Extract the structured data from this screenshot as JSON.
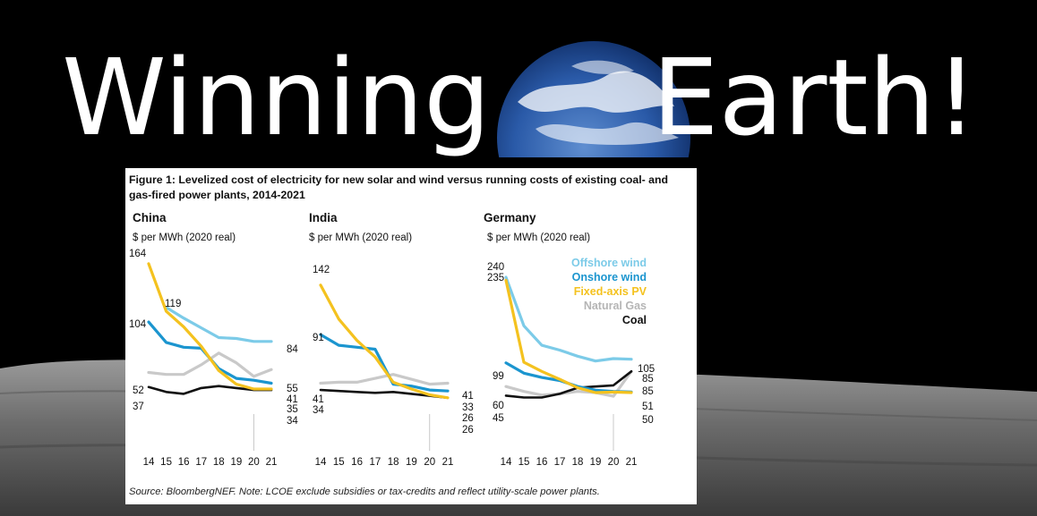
{
  "slide": {
    "title_left": "Winning",
    "title_right": "Earth!"
  },
  "figure": {
    "title": "Figure 1: Levelized cost of electricity for new solar and wind versus running costs of existing coal- and gas-fired power plants, 2014-2021",
    "source": "Source: BloombergNEF. Note: LCOE exclude subsidies or tax-credits and reflect utility-scale power plants."
  },
  "colors": {
    "offshore_wind": "#7ccbe8",
    "onshore_wind": "#1b95cf",
    "fixed_axis_pv": "#f4c21f",
    "natural_gas": "#c9c9c9",
    "coal": "#111111",
    "background": "#000000",
    "card": "#ffffff"
  },
  "legend": [
    {
      "label": "Offshore wind",
      "color": "#7ccbe8"
    },
    {
      "label": "Onshore wind",
      "color": "#1b95cf"
    },
    {
      "label": "Fixed-axis PV",
      "color": "#f4c21f"
    },
    {
      "label": "Natural Gas",
      "color": "#b5b5b5"
    },
    {
      "label": "Coal",
      "color": "#111111"
    }
  ],
  "chart_data": [
    {
      "type": "line",
      "title": "China",
      "ylabel": "$ per MWh (2020 real)",
      "x": [
        "14",
        "15",
        "16",
        "17",
        "18",
        "19",
        "20",
        "21"
      ],
      "ylim": [
        0,
        175
      ],
      "series": [
        {
          "name": "Offshore wind",
          "values": [
            null,
            119,
            108,
            98,
            88,
            87,
            84,
            84
          ]
        },
        {
          "name": "Onshore wind",
          "values": [
            104,
            83,
            78,
            77,
            56,
            46,
            44,
            41
          ]
        },
        {
          "name": "Fixed-axis PV",
          "values": [
            164,
            115,
            99,
            79,
            54,
            40,
            35,
            35
          ]
        },
        {
          "name": "Natural Gas",
          "values": [
            52,
            50,
            50,
            60,
            72,
            62,
            48,
            55
          ]
        },
        {
          "name": "Coal",
          "values": [
            37,
            32,
            30,
            36,
            38,
            36,
            34,
            34
          ]
        }
      ],
      "data_labels": [
        "164",
        "119",
        "104",
        "52",
        "37",
        "84",
        "55",
        "41",
        "35",
        "34"
      ]
    },
    {
      "type": "line",
      "title": "India",
      "ylabel": "$ per MWh (2020 real)",
      "x": [
        "14",
        "15",
        "16",
        "17",
        "18",
        "19",
        "20",
        "21"
      ],
      "ylim": [
        0,
        175
      ],
      "series": [
        {
          "name": "Onshore wind",
          "values": [
            91,
            80,
            78,
            76,
            40,
            38,
            34,
            33
          ]
        },
        {
          "name": "Fixed-axis PV",
          "values": [
            142,
            107,
            85,
            68,
            42,
            35,
            29,
            26
          ]
        },
        {
          "name": "Natural Gas",
          "values": [
            41,
            42,
            42,
            46,
            50,
            45,
            40,
            41
          ]
        },
        {
          "name": "Coal",
          "values": [
            34,
            33,
            32,
            31,
            32,
            30,
            28,
            26
          ]
        }
      ],
      "data_labels": [
        "142",
        "91",
        "41",
        "34",
        "41",
        "33",
        "26",
        "26"
      ]
    },
    {
      "type": "line",
      "title": "Germany",
      "ylabel": "$ per MWh (2020 real)",
      "x": [
        "14",
        "15",
        "16",
        "17",
        "18",
        "19",
        "20",
        "21"
      ],
      "ylim": [
        0,
        265
      ],
      "series": [
        {
          "name": "Offshore wind",
          "values": [
            240,
            160,
            128,
            120,
            110,
            102,
            106,
            105
          ]
        },
        {
          "name": "Onshore wind",
          "values": [
            99,
            82,
            75,
            70,
            60,
            54,
            52,
            51
          ]
        },
        {
          "name": "Fixed-axis PV",
          "values": [
            235,
            100,
            85,
            72,
            58,
            50,
            51,
            50
          ]
        },
        {
          "name": "Natural Gas",
          "values": [
            60,
            52,
            46,
            48,
            52,
            50,
            44,
            85
          ]
        },
        {
          "name": "Coal",
          "values": [
            45,
            42,
            42,
            48,
            58,
            60,
            62,
            85
          ]
        }
      ],
      "data_labels": [
        "240",
        "235",
        "99",
        "60",
        "45",
        "105",
        "85",
        "85",
        "51",
        "50"
      ]
    }
  ]
}
